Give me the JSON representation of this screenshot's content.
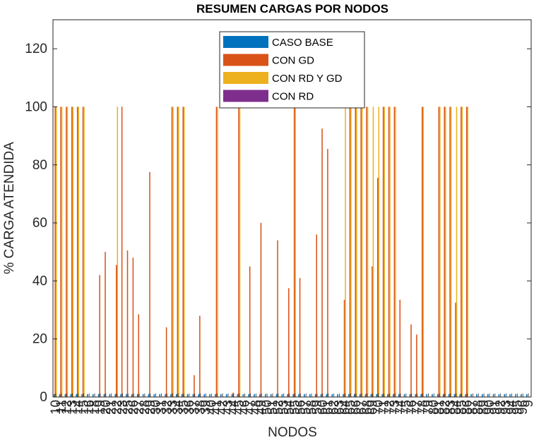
{
  "chart_data": {
    "type": "bar",
    "title": "RESUMEN CARGAS POR NODOS",
    "xlabel": "NODOS",
    "ylabel": "% CARGA ATENDIDA",
    "ylim": [
      0,
      130
    ],
    "yticks": [
      0,
      20,
      40,
      60,
      80,
      100,
      120
    ],
    "grid": false,
    "legend_position": "top-center",
    "categories": [
      "10",
      "11",
      "12",
      "13",
      "14",
      "15",
      "16",
      "17",
      "18",
      "19",
      "20",
      "21",
      "22",
      "23",
      "24",
      "25",
      "26",
      "27",
      "28",
      "29",
      "30",
      "31",
      "32",
      "33",
      "34",
      "35",
      "36",
      "37",
      "38",
      "39",
      "40",
      "41",
      "42",
      "43",
      "44",
      "45",
      "46",
      "47",
      "48",
      "49",
      "50",
      "51",
      "52",
      "53",
      "54",
      "55",
      "56",
      "57",
      "58",
      "59",
      "60",
      "61",
      "62",
      "63",
      "64",
      "65",
      "66",
      "67",
      "68",
      "69",
      "70",
      "71",
      "72",
      "73",
      "74",
      "75",
      "76",
      "77",
      "78",
      "79",
      "80",
      "81",
      "82",
      "83",
      "84",
      "85",
      "86",
      "87",
      "88",
      "89",
      "90",
      "91",
      "92",
      "93",
      "94",
      "95"
    ],
    "tick_labels": [
      "10",
      "11",
      "12",
      "13",
      "14",
      "15",
      "16",
      "18",
      "19",
      "20",
      "21",
      "22",
      "23",
      "25",
      "26",
      "27",
      "28",
      "29",
      "30",
      "31",
      "32",
      "33",
      "34",
      "35",
      "36",
      "37",
      "38",
      "39",
      "40",
      "41",
      "42",
      "43",
      "44",
      "45",
      "46",
      "47",
      "48",
      "49",
      "50",
      "51",
      "52",
      "53",
      "54",
      "55",
      "56",
      "57",
      "58",
      "59",
      "60",
      "61",
      "62",
      "63",
      "64",
      "65",
      "66",
      "67",
      "68",
      "69",
      "70",
      "71",
      "72",
      "73",
      "74",
      "75",
      "76",
      "77",
      "78",
      "79",
      "80",
      "81",
      "82",
      "83",
      "84",
      "85",
      "86",
      "87",
      "88",
      "89",
      "90",
      "91",
      "92",
      "93",
      "94",
      "95",
      "96",
      "9"
    ],
    "series": [
      {
        "name": "CASO BASE",
        "color": "#0072BD",
        "values": [
          1,
          1,
          1,
          1,
          1,
          1,
          1,
          1,
          1,
          1,
          1,
          1,
          1,
          1,
          1,
          1,
          1,
          1,
          1,
          1,
          1,
          1,
          1,
          1,
          1,
          1,
          1,
          1,
          1,
          1,
          1,
          1,
          1,
          1,
          1,
          1,
          1,
          1,
          1,
          1,
          1,
          1,
          1,
          1,
          1,
          1,
          1,
          1,
          1,
          1,
          1,
          1,
          1,
          1,
          1,
          1,
          1,
          1,
          1,
          1,
          1,
          1,
          1,
          1,
          1,
          1,
          1,
          1,
          1,
          1,
          1,
          1,
          1,
          1,
          1,
          1,
          1,
          1,
          1,
          1,
          1,
          1,
          1,
          1,
          1,
          1
        ]
      },
      {
        "name": "CON GD",
        "color": "#D95319",
        "values": [
          100,
          100,
          100,
          100,
          100,
          100,
          0,
          0,
          42,
          50,
          0,
          45.5,
          100,
          50.5,
          48,
          28.5,
          0,
          77.5,
          0,
          0,
          24,
          100,
          100,
          100,
          0,
          7.5,
          28,
          0,
          0,
          100,
          0,
          0,
          1.5,
          100,
          0,
          45,
          0,
          60,
          0,
          0,
          54,
          0,
          37.5,
          100,
          41,
          0,
          0,
          56,
          92.5,
          85.5,
          0,
          0,
          33.5,
          100,
          100,
          100,
          100,
          45,
          75.5,
          100,
          100,
          100,
          33.5,
          0,
          25,
          21.5,
          100,
          0,
          0,
          100,
          100,
          100,
          32.5,
          100,
          100,
          0,
          0,
          0,
          0,
          0,
          0,
          0,
          0,
          0,
          0,
          0
        ]
      },
      {
        "name": "CON RD Y GD",
        "color": "#EDB120",
        "values": [
          100,
          100,
          100,
          100,
          100,
          100,
          0,
          0,
          0,
          0,
          0,
          100,
          0,
          0,
          0,
          0,
          0,
          0,
          0,
          0,
          0,
          100,
          100,
          100,
          0,
          0,
          0,
          0,
          0,
          100,
          0,
          0,
          0,
          100,
          0,
          0,
          0,
          0,
          0,
          0,
          0,
          0,
          0,
          100,
          0,
          0,
          0,
          0,
          0,
          0,
          0,
          0,
          100,
          100,
          100,
          100,
          100,
          100,
          100,
          100,
          100,
          100,
          0,
          0,
          0,
          0,
          100,
          0,
          0,
          100,
          100,
          100,
          100,
          100,
          100,
          0,
          0,
          0,
          0,
          0,
          0,
          0,
          0,
          0,
          0,
          0
        ]
      },
      {
        "name": "CON RD",
        "color": "#7E2F8E",
        "values": [
          0,
          0,
          0,
          0,
          0,
          0,
          0,
          0,
          0,
          0,
          0,
          0,
          0,
          0,
          0,
          0,
          0,
          0,
          0,
          0,
          0,
          0,
          0,
          0,
          0,
          0,
          0,
          0,
          0,
          0,
          0,
          0,
          0,
          0,
          0,
          0,
          0,
          0,
          0,
          0,
          0,
          0,
          0,
          0,
          0,
          0,
          0,
          0,
          0,
          0,
          0,
          0,
          0,
          0,
          0,
          0,
          0,
          0,
          0,
          0,
          0,
          0,
          0,
          0,
          0,
          0,
          0,
          0,
          0,
          0,
          0,
          0,
          0,
          0,
          0,
          0,
          0,
          0,
          0,
          0,
          0,
          0,
          0,
          0,
          0,
          0
        ]
      }
    ]
  }
}
